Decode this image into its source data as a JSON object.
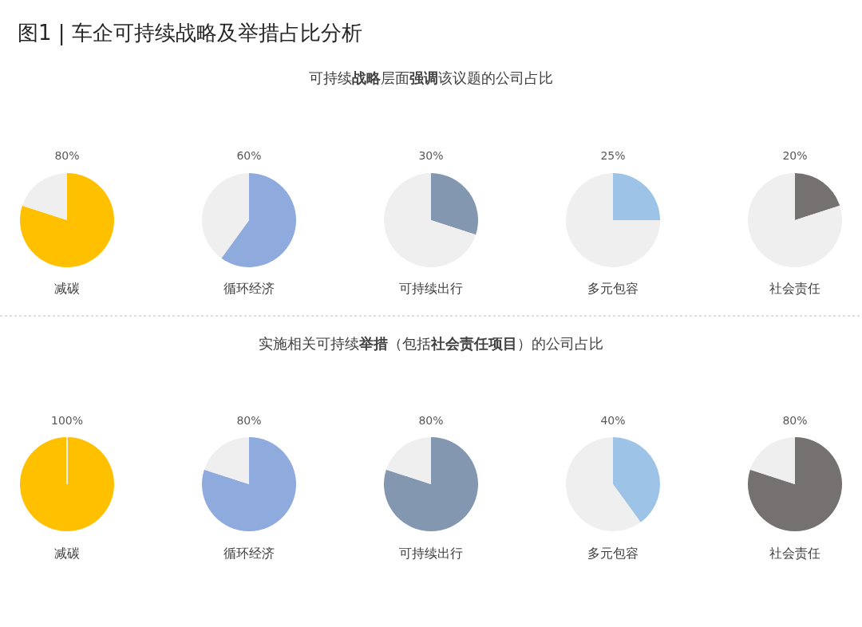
{
  "chart_data": [
    {
      "type": "other",
      "title": "图1 | 车企可持续战略及举措占比分析",
      "subtitle": "可持续**战略**层面**强调**该议题的公司占比"
    },
    {
      "type": "pie",
      "title": "减碳",
      "categories": [
        null,
        null
      ],
      "values": [
        80,
        20
      ],
      "colors": [
        "#ffc000",
        "#efefef"
      ],
      "value_labels": [
        "80%",
        null
      ]
    },
    {
      "type": "pie",
      "title": "循环经济",
      "categories": [
        null,
        null
      ],
      "values": [
        60,
        40
      ],
      "colors": [
        "#8faadc",
        "#efefef"
      ],
      "value_labels": [
        "60%",
        null
      ]
    },
    {
      "type": "pie",
      "title": "可持续出行",
      "categories": [
        null,
        null
      ],
      "values": [
        30,
        70
      ],
      "colors": [
        "#8497b0",
        "#efefef"
      ],
      "value_labels": [
        "30%",
        null
      ]
    },
    {
      "type": "pie",
      "title": "多元包容",
      "categories": [
        null,
        null
      ],
      "values": [
        25,
        75
      ],
      "colors": [
        "#9dc3e6",
        "#efefef"
      ],
      "value_labels": [
        "25%",
        null
      ]
    },
    {
      "type": "pie",
      "title": "社会责任",
      "categories": [
        null,
        null
      ],
      "values": [
        20,
        80
      ],
      "colors": [
        "#767171",
        "#efefef"
      ],
      "value_labels": [
        "20%",
        null
      ]
    },
    {
      "type": "other",
      "subtitle": "实施相关可持续**举措**（包括**社会责任项目**）的公司占比"
    },
    {
      "type": "pie",
      "title": "减碳",
      "categories": [
        null,
        null
      ],
      "values": [
        100,
        0
      ],
      "colors": [
        "#ffc000",
        "#efefef"
      ],
      "value_labels": [
        "100%",
        null
      ]
    },
    {
      "type": "pie",
      "title": "循环经济",
      "categories": [
        null,
        null
      ],
      "values": [
        80,
        20
      ],
      "colors": [
        "#8faadc",
        "#efefef"
      ],
      "value_labels": [
        "80%",
        null
      ]
    },
    {
      "type": "pie",
      "title": "可持续出行",
      "categories": [
        null,
        null
      ],
      "values": [
        80,
        20
      ],
      "colors": [
        "#8497b0",
        "#efefef"
      ],
      "value_labels": [
        "80%",
        null
      ]
    },
    {
      "type": "pie",
      "title": "多元包容",
      "categories": [
        null,
        null
      ],
      "values": [
        40,
        60
      ],
      "colors": [
        "#9dc3e6",
        "#efefef"
      ],
      "value_labels": [
        "40%",
        null
      ]
    },
    {
      "type": "pie",
      "title": "社会责任",
      "categories": [
        null,
        null
      ],
      "values": [
        80,
        20
      ],
      "colors": [
        "#767171",
        "#efefef"
      ],
      "value_labels": [
        "80%",
        null
      ]
    }
  ]
}
